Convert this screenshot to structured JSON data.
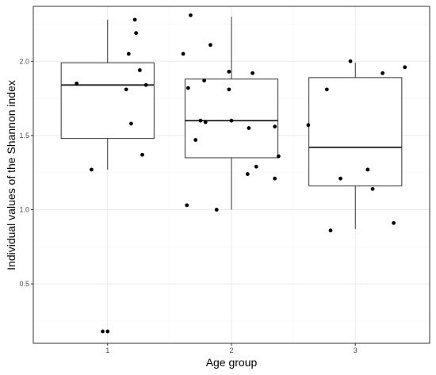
{
  "chart_data": {
    "type": "boxplot",
    "title": "",
    "xlabel": "Age group",
    "ylabel": "Individual values of the Shannon index",
    "categories": [
      "1",
      "2",
      "3"
    ],
    "y_ticks": [
      "0.5",
      "1.0",
      "1.5",
      "2.0"
    ],
    "y_tick_values": [
      0.5,
      1.0,
      1.5,
      2.0
    ],
    "ylim": [
      0.1,
      2.37
    ],
    "grid": true,
    "legend": "none",
    "colors": {
      "box_line": "#333333",
      "point": "#000000",
      "grid_major": "#ebebeb",
      "grid_minor": "#f5f5f5",
      "panel_border": "#333333"
    },
    "boxes": [
      {
        "group": "1",
        "whisker_low": 1.27,
        "q1": 1.48,
        "median": 1.84,
        "q3": 1.99,
        "whisker_high": 2.28
      },
      {
        "group": "2",
        "whisker_low": 1.0,
        "q1": 1.35,
        "median": 1.6,
        "q3": 1.88,
        "whisker_high": 2.3
      },
      {
        "group": "3",
        "whisker_low": 0.87,
        "q1": 1.16,
        "median": 1.42,
        "q3": 1.89,
        "whisker_high": 1.99
      }
    ],
    "points": [
      {
        "x": 0.75,
        "y": 1.85
      },
      {
        "x": 0.87,
        "y": 1.27
      },
      {
        "x": 0.96,
        "y": 0.18
      },
      {
        "x": 1.0,
        "y": 0.18
      },
      {
        "x": 1.15,
        "y": 1.81
      },
      {
        "x": 1.17,
        "y": 2.05
      },
      {
        "x": 1.19,
        "y": 1.58
      },
      {
        "x": 1.22,
        "y": 2.28
      },
      {
        "x": 1.23,
        "y": 2.19
      },
      {
        "x": 1.26,
        "y": 1.94
      },
      {
        "x": 1.28,
        "y": 1.37
      },
      {
        "x": 1.31,
        "y": 1.84
      },
      {
        "x": 1.61,
        "y": 2.05
      },
      {
        "x": 1.64,
        "y": 1.03
      },
      {
        "x": 1.65,
        "y": 1.82
      },
      {
        "x": 1.67,
        "y": 2.31
      },
      {
        "x": 1.71,
        "y": 1.47
      },
      {
        "x": 1.75,
        "y": 1.6
      },
      {
        "x": 1.78,
        "y": 1.87
      },
      {
        "x": 1.79,
        "y": 1.59
      },
      {
        "x": 1.83,
        "y": 2.11
      },
      {
        "x": 1.88,
        "y": 1.0
      },
      {
        "x": 1.98,
        "y": 1.81
      },
      {
        "x": 1.98,
        "y": 1.93
      },
      {
        "x": 2.0,
        "y": 1.6
      },
      {
        "x": 2.13,
        "y": 1.24
      },
      {
        "x": 2.14,
        "y": 1.55
      },
      {
        "x": 2.17,
        "y": 1.92
      },
      {
        "x": 2.2,
        "y": 1.29
      },
      {
        "x": 2.35,
        "y": 1.21
      },
      {
        "x": 2.35,
        "y": 1.56
      },
      {
        "x": 2.38,
        "y": 1.36
      },
      {
        "x": 2.62,
        "y": 1.57
      },
      {
        "x": 2.77,
        "y": 1.81
      },
      {
        "x": 2.8,
        "y": 0.86
      },
      {
        "x": 2.88,
        "y": 1.21
      },
      {
        "x": 2.96,
        "y": 2.0
      },
      {
        "x": 3.1,
        "y": 1.27
      },
      {
        "x": 3.14,
        "y": 1.14
      },
      {
        "x": 3.22,
        "y": 1.92
      },
      {
        "x": 3.31,
        "y": 0.91
      },
      {
        "x": 3.4,
        "y": 1.96
      }
    ]
  }
}
